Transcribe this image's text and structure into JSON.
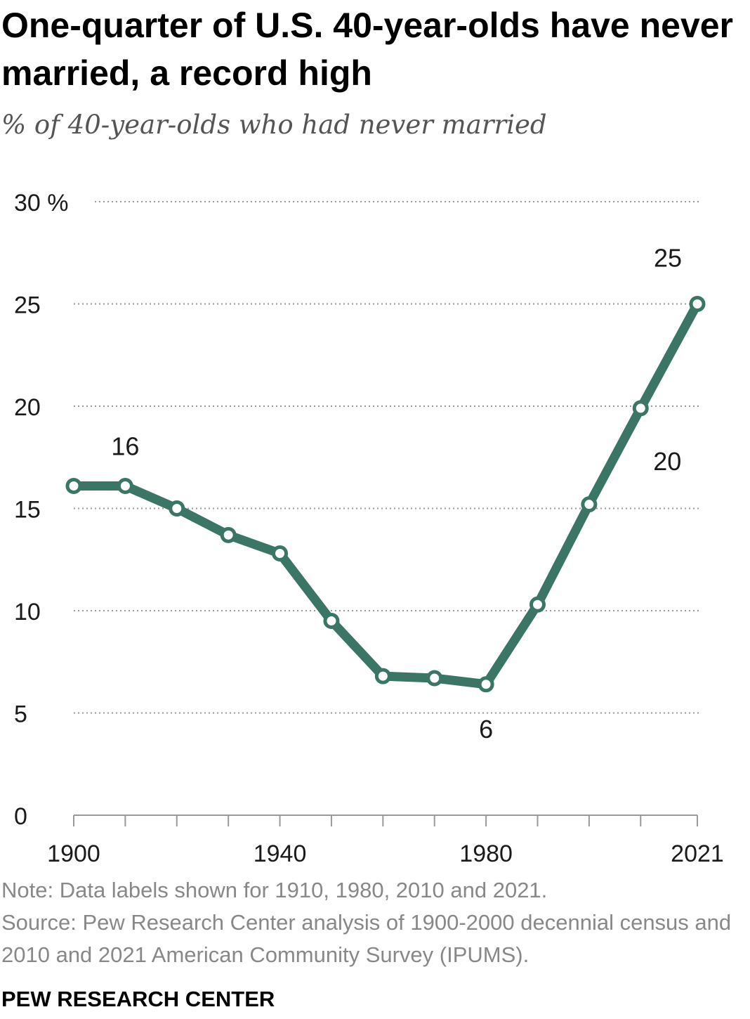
{
  "title": "One-quarter of U.S. 40-year-olds have never married, a record high",
  "subtitle": "% of 40-year-olds who had never married",
  "note": "Note: Data labels shown for 1910, 1980, 2010 and 2021.",
  "source": "Source: Pew Research Center analysis of 1900-2000 decennial census and 2010 and 2021 American Community Survey (IPUMS).",
  "brand": "PEW RESEARCH CENTER",
  "chart_data": {
    "type": "line",
    "title": "One-quarter of U.S. 40-year-olds have never married, a record high",
    "subtitle": "% of 40-year-olds who had never married",
    "x": [
      1900,
      1910,
      1920,
      1930,
      1940,
      1950,
      1960,
      1970,
      1980,
      1990,
      2000,
      2010,
      2021
    ],
    "values": [
      16.1,
      16.1,
      15.0,
      13.7,
      12.8,
      9.5,
      6.8,
      6.7,
      6.4,
      10.3,
      15.2,
      19.9,
      25.0
    ],
    "data_labels": [
      {
        "x": 1910,
        "label": "16"
      },
      {
        "x": 1980,
        "label": "6"
      },
      {
        "x": 2010,
        "label": "20"
      },
      {
        "x": 2021,
        "label": "25"
      }
    ],
    "ylim": [
      0,
      30
    ],
    "y_ticks": [
      0,
      5,
      10,
      15,
      20,
      25,
      30
    ],
    "y_tick_labels": [
      "0",
      "5",
      "10",
      "15",
      "20",
      "25",
      "30 %"
    ],
    "x_tick_labels": [
      {
        "x": 1900,
        "label": "1900"
      },
      {
        "x": 1940,
        "label": "1940"
      },
      {
        "x": 1980,
        "label": "1980"
      },
      {
        "x": 2021,
        "label": "2021"
      }
    ],
    "grid": true,
    "line_color": "#3b7566"
  }
}
